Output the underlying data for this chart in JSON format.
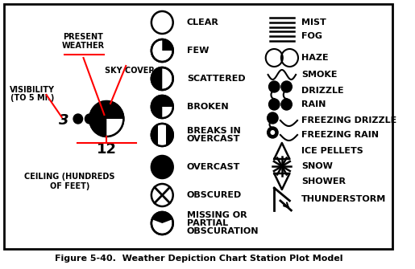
{
  "title": "Figure 5-40.  Weather Depiction Chart Station Plot Model",
  "bg_color": "#ffffff",
  "border_color": "#000000",
  "sky_labels": [
    "CLEAR",
    "FEW",
    "SCATTERED",
    "BROKEN",
    "BREAKS IN\nOVERCAST",
    "OVERCAST",
    "OBSCURED",
    "MISSING OR\nPARTIAL\nOBSCURATION"
  ],
  "right_labels": [
    "MIST",
    "FOG",
    "HAZE",
    "SMOKE",
    "DRIZZLE",
    "RAIN",
    "FREEZING DRIZZLE",
    "FREEZING RAIN",
    "ICE PELLETS",
    "SNOW",
    "SHOWER",
    "THUNDERSTORM"
  ]
}
